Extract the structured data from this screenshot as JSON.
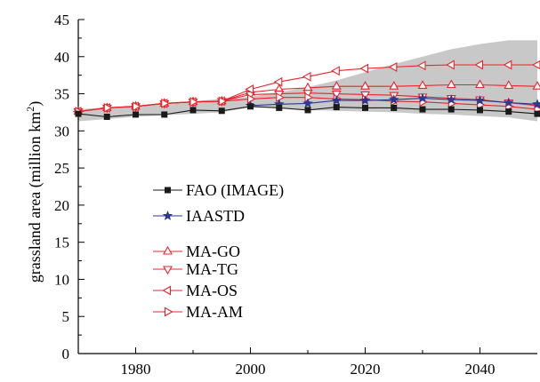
{
  "chart_data": {
    "type": "line",
    "title": "",
    "ylabel_main": "grassland area (million km",
    "ylabel_sup": "2",
    "ylabel_end": ")",
    "xlabel": "",
    "xlim": [
      1970,
      2050
    ],
    "ylim": [
      0,
      45
    ],
    "xticks": [
      1980,
      2000,
      2020,
      2040
    ],
    "yticks": [
      0,
      5,
      10,
      15,
      20,
      25,
      30,
      35,
      40,
      45
    ],
    "grid": false,
    "legend_position": "center-left",
    "colors": {
      "red": "#e8242b",
      "blue": "#2b3990",
      "black": "#1a1a1a",
      "band": "#c8c8c8"
    },
    "uncertainty_band": {
      "x": [
        1970,
        1975,
        1980,
        1985,
        1990,
        1995,
        2000,
        2005,
        2010,
        2015,
        2020,
        2025,
        2030,
        2035,
        2040,
        2045,
        2050
      ],
      "lower": [
        31.3,
        31.6,
        31.9,
        32.1,
        32.3,
        32.5,
        33.2,
        33.1,
        32.8,
        32.7,
        32.6,
        32.5,
        32.3,
        32.2,
        32.0,
        31.8,
        31.3
      ],
      "upper": [
        32.9,
        33.2,
        33.4,
        33.8,
        34.0,
        34.3,
        34.6,
        35.2,
        35.9,
        36.8,
        37.9,
        39.0,
        40.0,
        41.0,
        41.7,
        42.2,
        42.2
      ]
    },
    "series": [
      {
        "name": "FAO (IMAGE)",
        "marker": "square",
        "color": "#1a1a1a",
        "x": [
          1970,
          1975,
          1980,
          1985,
          1990,
          1995,
          2000,
          2005,
          2010,
          2015,
          2020,
          2025,
          2030,
          2035,
          2040,
          2045,
          2050
        ],
        "y": [
          32.3,
          31.9,
          32.2,
          32.2,
          32.8,
          32.7,
          33.3,
          33.1,
          32.8,
          33.2,
          33.1,
          33.1,
          32.9,
          32.9,
          32.8,
          32.6,
          32.3
        ]
      },
      {
        "name": "IAASTD",
        "marker": "star",
        "color": "#2b3990",
        "x": [
          2000,
          2005,
          2010,
          2015,
          2020,
          2025,
          2030,
          2035,
          2040,
          2045,
          2050
        ],
        "y": [
          33.4,
          33.6,
          33.7,
          34.1,
          34.1,
          34.2,
          34.4,
          34.2,
          34.1,
          33.8,
          33.6
        ]
      },
      {
        "name": "MA-GO",
        "marker": "triangle-up",
        "color": "#e8242b",
        "x": [
          1970,
          1975,
          1980,
          1985,
          1990,
          1995,
          2000,
          2005,
          2010,
          2015,
          2020,
          2025,
          2030,
          2035,
          2040,
          2045,
          2050
        ],
        "y": [
          32.6,
          33.1,
          33.3,
          33.7,
          33.9,
          34.0,
          35.2,
          35.6,
          35.8,
          36.0,
          36.0,
          36.0,
          36.1,
          36.2,
          36.2,
          36.1,
          36.0
        ]
      },
      {
        "name": "MA-TG",
        "marker": "triangle-down",
        "color": "#e8242b",
        "x": [
          1970,
          1975,
          1980,
          1985,
          1990,
          1995,
          2000,
          2005,
          2010,
          2015,
          2020,
          2025,
          2030,
          2035,
          2040,
          2045,
          2050
        ],
        "y": [
          32.6,
          33.1,
          33.3,
          33.7,
          33.9,
          34.0,
          34.9,
          35.0,
          35.1,
          35.0,
          34.9,
          34.8,
          34.6,
          34.4,
          34.2,
          33.8,
          33.4
        ]
      },
      {
        "name": "MA-OS",
        "marker": "triangle-left",
        "color": "#e8242b",
        "x": [
          1970,
          1975,
          1980,
          1985,
          1990,
          1995,
          2000,
          2005,
          2010,
          2015,
          2020,
          2025,
          2030,
          2035,
          2040,
          2045,
          2050
        ],
        "y": [
          32.6,
          33.1,
          33.3,
          33.7,
          33.9,
          34.0,
          35.6,
          36.6,
          37.3,
          38.1,
          38.4,
          38.6,
          38.8,
          38.9,
          38.9,
          38.9,
          38.9
        ]
      },
      {
        "name": "MA-AM",
        "marker": "triangle-right",
        "color": "#e8242b",
        "x": [
          1970,
          1975,
          1980,
          1985,
          1990,
          1995,
          2000,
          2005,
          2010,
          2015,
          2020,
          2025,
          2030,
          2035,
          2040,
          2045,
          2050
        ],
        "y": [
          32.6,
          33.1,
          33.3,
          33.7,
          33.9,
          34.0,
          34.3,
          34.5,
          34.5,
          34.3,
          34.2,
          34.0,
          33.9,
          33.7,
          33.5,
          33.3,
          32.9
        ]
      }
    ]
  }
}
